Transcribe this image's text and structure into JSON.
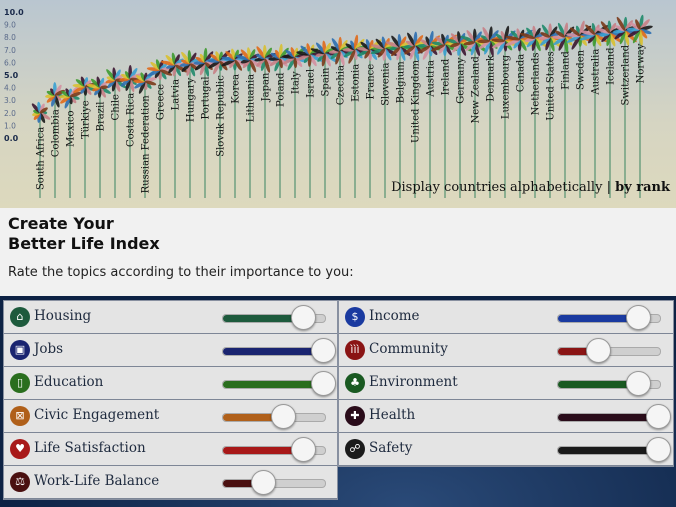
{
  "chart_data": {
    "type": "flower",
    "y_ticks": [
      "10.0",
      "9.0",
      "8.0",
      "7.0",
      "6.0",
      "5.0",
      "4.0",
      "3.0",
      "2.0",
      "1.0",
      "0.0"
    ],
    "ylim": [
      0,
      10
    ],
    "countries": [
      "South Africa",
      "Colombia",
      "Mexico",
      "Türkiye",
      "Brazil",
      "Chile",
      "Costa Rica",
      "Russian Federation",
      "Greece",
      "Latvia",
      "Hungary",
      "Portugal",
      "Slovak Republic",
      "Korea",
      "Lithuania",
      "Japan",
      "Poland",
      "Italy",
      "Israel",
      "Spain",
      "Czechia",
      "Estonia",
      "France",
      "Slovenia",
      "Belgium",
      "United Kingdom",
      "Austria",
      "Ireland",
      "Germany",
      "New Zealand",
      "Denmark",
      "Luxembourg",
      "Canada",
      "Netherlands",
      "United States",
      "Finland",
      "Sweden",
      "Australia",
      "Iceland",
      "Switzerland",
      "Norway"
    ],
    "values": [
      2.0,
      3.4,
      3.3,
      4.1,
      4.0,
      4.6,
      4.7,
      4.5,
      5.4,
      5.8,
      5.9,
      6.0,
      6.1,
      6.2,
      6.2,
      6.3,
      6.3,
      6.4,
      6.6,
      6.7,
      6.9,
      7.0,
      7.0,
      7.1,
      7.2,
      7.3,
      7.3,
      7.4,
      7.5,
      7.6,
      7.7,
      7.7,
      7.8,
      7.9,
      8.0,
      8.0,
      8.1,
      8.2,
      8.3,
      8.5,
      8.6
    ],
    "petal_colors": [
      "#1f8a6a",
      "#c77f86",
      "#1a1a1a",
      "#2e6fb0",
      "#e06a1a",
      "#d8c030",
      "#3d9a30",
      "#3a1530",
      "#3aa0d0",
      "#d490a0",
      "#7a3a1a"
    ]
  },
  "sort": {
    "prefix": "Display countries alphabetically | ",
    "active": "by rank"
  },
  "intro": {
    "title1": "Create Your",
    "title2": "Better Life Index",
    "subtitle": "Rate the topics according to their importance to you:"
  },
  "topics_left": [
    {
      "label": "Housing",
      "icon": "house-icon",
      "glyph": "⌂",
      "color": "#1d5a3c",
      "value": 4
    },
    {
      "label": "Jobs",
      "icon": "briefcase-icon",
      "glyph": "▣",
      "color": "#1a2470",
      "value": 5
    },
    {
      "label": "Education",
      "icon": "book-icon",
      "glyph": "▯",
      "color": "#2a6e1e",
      "value": 5
    },
    {
      "label": "Civic Engagement",
      "icon": "ballot-icon",
      "glyph": "⊠",
      "color": "#b0601a",
      "value": 3
    },
    {
      "label": "Life Satisfaction",
      "icon": "heart-icon",
      "glyph": "♥",
      "color": "#a81818",
      "value": 4
    },
    {
      "label": "Work-Life Balance",
      "icon": "scales-icon",
      "glyph": "⚖",
      "color": "#4a1010",
      "value": 2
    }
  ],
  "topics_right": [
    {
      "label": "Income",
      "icon": "money-icon",
      "glyph": "$",
      "color": "#1a3aa0",
      "value": 4
    },
    {
      "label": "Community",
      "icon": "people-icon",
      "glyph": "ììì",
      "color": "#8a1414",
      "value": 2
    },
    {
      "label": "Environment",
      "icon": "tree-icon",
      "glyph": "♣",
      "color": "#1a5a22",
      "value": 4
    },
    {
      "label": "Health",
      "icon": "cross-icon",
      "glyph": "✚",
      "color": "#2a0c1a",
      "value": 5
    },
    {
      "label": "Safety",
      "icon": "runner-icon",
      "glyph": "☍",
      "color": "#1a1a1a",
      "value": 5
    }
  ],
  "max_value": 5
}
